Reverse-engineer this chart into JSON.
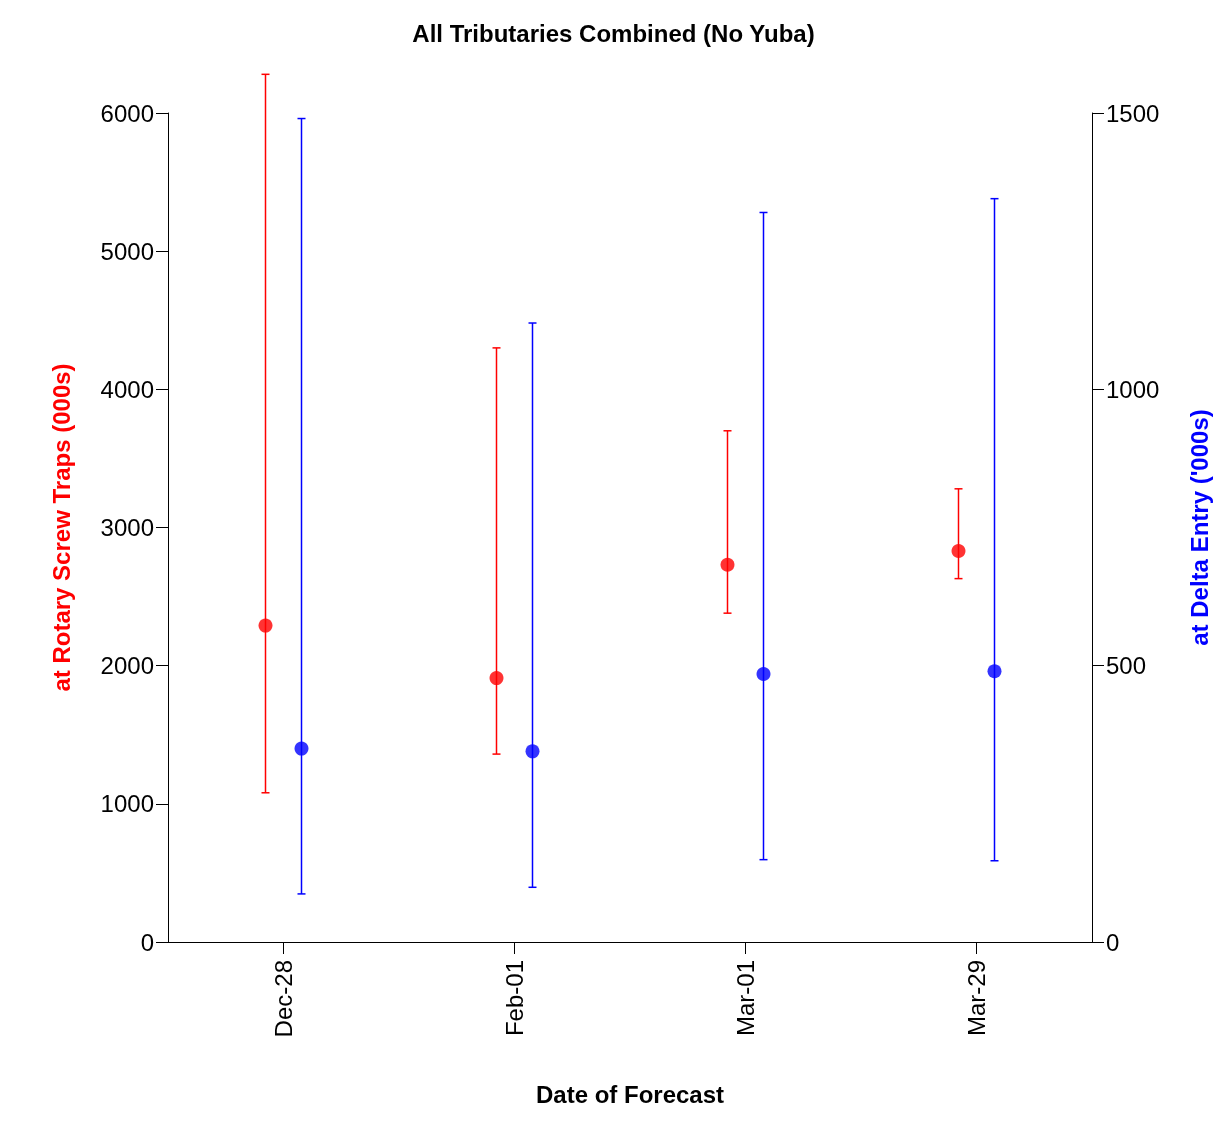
{
  "chart_data": {
    "type": "scatter",
    "title": "All Tributaries Combined (No Yuba)",
    "xlabel": "Date of Forecast",
    "ylabel": "at Rotary Screw Traps (000s)",
    "y2label": "at Delta Entry ('000s)",
    "categories": [
      "Dec-28",
      "Feb-01",
      "Mar-01",
      "Mar-29"
    ],
    "series": [
      {
        "color": "#ff0000",
        "values": [
          2290,
          1910,
          2730,
          2830
        ],
        "errors": [
          [
            1080,
            6280
          ],
          [
            1360,
            4300
          ],
          [
            2380,
            3700
          ],
          [
            2630,
            3280
          ]
        ]
      },
      {
        "color": "#0000ff",
        "axis": "y2",
        "values": [
          350,
          345,
          485,
          490
        ],
        "errors": [
          [
            87,
            1490
          ],
          [
            99,
            1120
          ],
          [
            149,
            1320
          ],
          [
            147,
            1345
          ]
        ]
      }
    ],
    "ylim": [
      0,
      6000
    ],
    "yticks": [
      0,
      1000,
      2000,
      3000,
      4000,
      5000,
      6000
    ],
    "y2lim": [
      0,
      1500
    ],
    "y2ticks": [
      0,
      500,
      1000,
      1500
    ],
    "grid": false,
    "marker": "circle"
  }
}
